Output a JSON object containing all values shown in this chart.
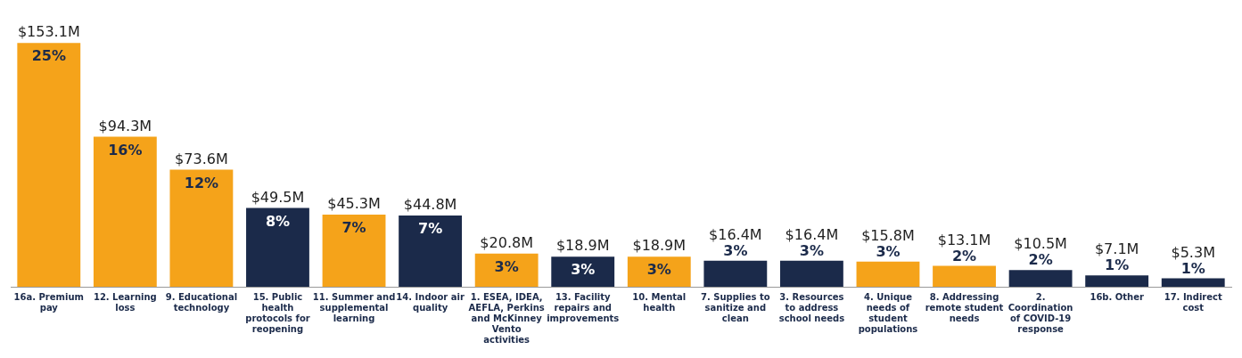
{
  "chart_data": {
    "type": "bar",
    "categories": [
      "16a. Premium pay",
      "12. Learning loss",
      "9. Educational technology",
      "15.  Public health protocols for reopening",
      "11. Summer and supplemental learning",
      "14. Indoor air quality",
      "1. ESEA, IDEA, AEFLA, Perkins and McKinney Vento activities",
      "13. Facility repairs and improvements",
      "10. Mental health",
      "7. Supplies to sanitize and clean",
      "3. Resources to address school needs",
      "4. Unique needs of student populations",
      "8. Addressing remote student needs",
      "2. Coordination of COVID-19 response",
      "16b. Other",
      "17. Indirect cost"
    ],
    "values": [
      153.1,
      94.3,
      73.6,
      49.5,
      45.3,
      44.8,
      20.8,
      18.9,
      18.9,
      16.4,
      16.4,
      15.8,
      13.1,
      10.5,
      7.1,
      5.3
    ],
    "colors": [
      "#f5a31a",
      "#f5a31a",
      "#f5a31a",
      "#1b2a4a",
      "#f5a31a",
      "#1b2a4a",
      "#f5a31a",
      "#1b2a4a",
      "#f5a31a",
      "#1b2a4a",
      "#1b2a4a",
      "#f5a31a",
      "#f5a31a",
      "#1b2a4a",
      "#1b2a4a",
      "#1b2a4a"
    ],
    "value_labels": [
      "$153.1M",
      "$94.3M",
      "$73.6M",
      "$49.5M",
      "$45.3M",
      "$44.8M",
      "$20.8M",
      "$18.9M",
      "$18.9M",
      "$16.4M",
      "$16.4M",
      "$15.8M",
      "$13.1M",
      "$10.5M",
      "$7.1M",
      "$5.3M"
    ],
    "annotations": [
      {
        "text": "25%",
        "x": "16a. Premium pay",
        "y": 153.1
      },
      {
        "text": "16%",
        "x": "12. Learning loss",
        "y": 94.3
      },
      {
        "text": "12%",
        "x": "9. Educational technology",
        "y": 73.6
      },
      {
        "text": "8%",
        "x": "15.  Public health protocols for reopening",
        "y": 49.5
      },
      {
        "text": "7%",
        "x": "11. Summer and supplemental learning",
        "y": 45.3
      },
      {
        "text": "7%",
        "x": "14. Indoor air quality",
        "y": 44.8
      },
      {
        "text": "3%",
        "x": "1. ESEA, IDEA, AEFLA, Perkins and McKinney Vento activities",
        "y": 20.8
      },
      {
        "text": "3%",
        "x": "13. Facility repairs and improvements",
        "y": 18.9
      },
      {
        "text": "3%",
        "x": "10. Mental health",
        "y": 18.9
      },
      {
        "text": "3%",
        "x": "7. Supplies to sanitize and clean",
        "y": 16.4
      },
      {
        "text": "3%",
        "x": "3. Resources to address school needs",
        "y": 16.4
      },
      {
        "text": "3%",
        "x": "4. Unique needs of student populations",
        "y": 15.8
      },
      {
        "text": "2%",
        "x": "8. Addressing remote student needs",
        "y": 13.1
      },
      {
        "text": "2%",
        "x": "2. Coordination of COVID-19 response",
        "y": 10.5
      },
      {
        "text": "1%",
        "x": "16b. Other",
        "y": 7.1
      },
      {
        "text": "1%",
        "x": "17. Indirect cost",
        "y": 5.3
      }
    ],
    "grid": false,
    "legend": false,
    "tick_labels": "x"
  }
}
